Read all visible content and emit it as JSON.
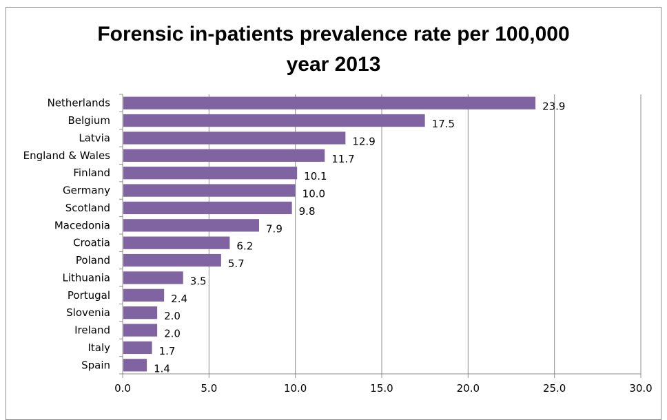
{
  "chart_data": {
    "type": "bar",
    "orientation": "horizontal",
    "title": "Forensic in-patients prevalence rate per 100,000",
    "subtitle": "year 2013",
    "xlabel": "",
    "ylabel": "",
    "categories": [
      "Netherlands",
      "Belgium",
      "Latvia",
      "England & Wales",
      "Finland",
      "Germany",
      "Scotland",
      "Macedonia",
      "Croatia",
      "Poland",
      "Lithuania",
      "Portugal",
      "Slovenia",
      "Ireland",
      "Italy",
      "Spain"
    ],
    "values": [
      23.9,
      17.5,
      12.9,
      11.7,
      10.1,
      10.0,
      9.8,
      7.9,
      6.2,
      5.7,
      3.5,
      2.4,
      2.0,
      2.0,
      1.7,
      1.4
    ],
    "data_labels": [
      "23.9",
      "17.5",
      "12.9",
      "11.7",
      "10.1",
      "10.0",
      "9.8",
      "7.9",
      "6.2",
      "5.7",
      "3.5",
      "2.4",
      "2.0",
      "2.0",
      "1.7",
      "1.4"
    ],
    "xlim": [
      0,
      30
    ],
    "xticks": [
      "0.0",
      "5.0",
      "10.0",
      "15.0",
      "20.0",
      "25.0",
      "30.0"
    ],
    "grid": "vertical",
    "legend": "none",
    "bar_color": "#8064a2"
  }
}
